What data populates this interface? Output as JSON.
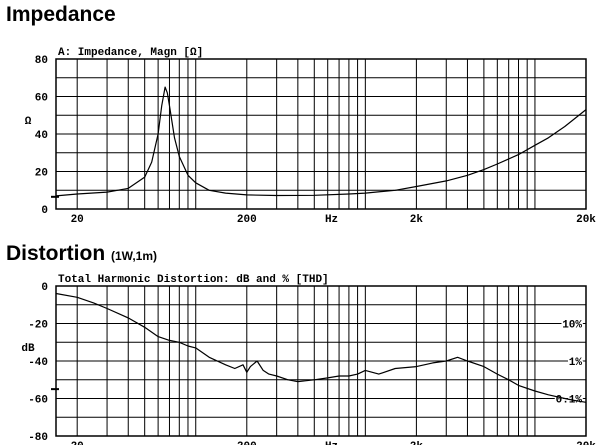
{
  "headings": {
    "impedance": "Impedance",
    "distortion": "Distortion",
    "distortion_note": "(1W,1m)"
  },
  "chart_data": [
    {
      "type": "line",
      "title": "A: Impedance, Magn [Ω]",
      "ylabel": "Ω",
      "xlabel": "Hz",
      "x_scale": "log",
      "xlim": [
        15,
        20000
      ],
      "ylim": [
        0,
        80
      ],
      "x_ticks": [
        {
          "value": 20,
          "label": "20"
        },
        {
          "value": 200,
          "label": "200"
        },
        {
          "value": 632,
          "label": "Hz"
        },
        {
          "value": 2000,
          "label": "2k"
        },
        {
          "value": 20000,
          "label": "20k"
        }
      ],
      "y_ticks": [
        {
          "value": 0,
          "label": "0"
        },
        {
          "value": 20,
          "label": "20"
        },
        {
          "value": 40,
          "label": "40"
        },
        {
          "value": 60,
          "label": "60"
        },
        {
          "value": 80,
          "label": "80"
        }
      ],
      "grid": true,
      "marker_y": 6.5,
      "series": [
        {
          "x": [
            15,
            20,
            30,
            40,
            50,
            55,
            60,
            63,
            66,
            68,
            70,
            75,
            80,
            90,
            100,
            120,
            150,
            200,
            300,
            500,
            800,
            1000,
            1500,
            2000,
            3000,
            4000,
            5000,
            6000,
            8000,
            10000,
            12000,
            15000,
            20000
          ],
          "y": [
            7,
            8,
            9,
            11,
            17,
            25,
            40,
            55,
            65,
            62,
            55,
            38,
            28,
            18,
            14,
            10,
            8.5,
            7.5,
            7.2,
            7.3,
            8,
            8.5,
            10,
            12,
            15,
            18,
            21,
            24,
            29,
            34,
            38,
            44,
            53
          ]
        }
      ]
    },
    {
      "type": "line",
      "title": "Total Harmonic Distortion: dB and % [THD]",
      "ylabel": "dB",
      "xlabel": "Hz",
      "x_scale": "log",
      "xlim": [
        15,
        20000
      ],
      "ylim": [
        -80,
        0
      ],
      "x_ticks": [
        {
          "value": 20,
          "label": "20"
        },
        {
          "value": 200,
          "label": "200"
        },
        {
          "value": 632,
          "label": "Hz"
        },
        {
          "value": 2000,
          "label": "2k"
        },
        {
          "value": 20000,
          "label": "20k"
        }
      ],
      "y_ticks": [
        {
          "value": 0,
          "label": "0"
        },
        {
          "value": -20,
          "label": "-20"
        },
        {
          "value": -40,
          "label": "-40"
        },
        {
          "value": -60,
          "label": "-60"
        },
        {
          "value": -80,
          "label": "-80"
        }
      ],
      "right_labels": [
        {
          "value": -20,
          "label": "10%"
        },
        {
          "value": -40,
          "label": "1%"
        },
        {
          "value": -60,
          "label": "0.1%"
        }
      ],
      "grid": true,
      "marker_y": -55,
      "series": [
        {
          "x": [
            15,
            20,
            25,
            30,
            40,
            50,
            60,
            70,
            80,
            90,
            100,
            120,
            150,
            170,
            190,
            200,
            210,
            230,
            250,
            270,
            300,
            350,
            400,
            500,
            600,
            700,
            800,
            900,
            1000,
            1200,
            1500,
            2000,
            2500,
            3000,
            3500,
            4000,
            5000,
            6000,
            7000,
            8000,
            10000,
            12000,
            15000,
            17000,
            20000
          ],
          "y": [
            -4,
            -6,
            -9,
            -12,
            -17,
            -22,
            -27,
            -29,
            -30,
            -32,
            -33,
            -38,
            -42,
            -44,
            -42,
            -46,
            -43,
            -40,
            -45,
            -47,
            -48,
            -50,
            -51,
            -50,
            -49,
            -48,
            -48,
            -47,
            -45,
            -47,
            -44,
            -43,
            -41,
            -40,
            -38,
            -40,
            -43,
            -47,
            -50,
            -53,
            -56,
            -58,
            -60,
            -61,
            -62
          ]
        }
      ]
    }
  ]
}
